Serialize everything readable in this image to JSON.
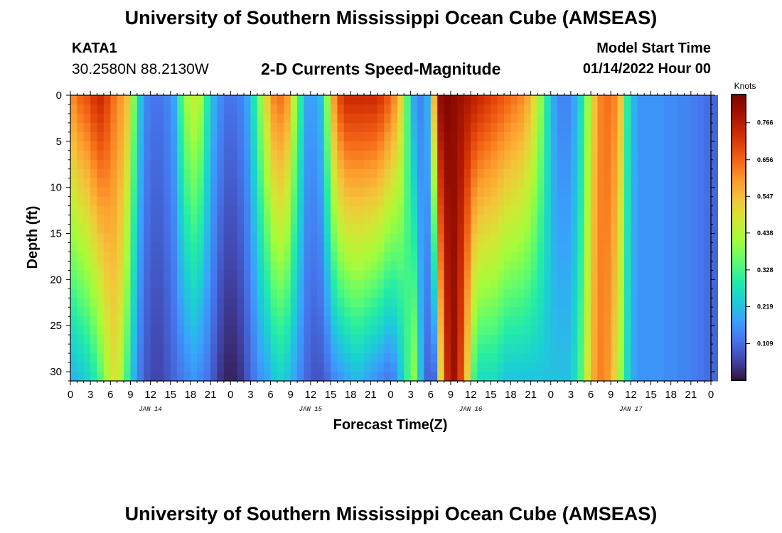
{
  "header": {
    "title": "University of Southern Mississippi Ocean Cube (AMSEAS)",
    "station_id": "KATA1",
    "station_coords": "30.2580N  88.2130W",
    "subtitle": "2-D Currents Speed-Magnitude",
    "start_label": "Model Start Time",
    "start_value": "01/14/2022 Hour 00"
  },
  "footer": {
    "title": "University of Southern Mississippi Ocean Cube (AMSEAS)"
  },
  "chart_data": {
    "type": "heatmap",
    "title": "2-D Currents Speed-Magnitude",
    "xlabel": "Forecast Time(Z)",
    "ylabel": "Depth (ft)",
    "x_range_hours": [
      0,
      96
    ],
    "y_range_ft": [
      0,
      31
    ],
    "x_tick_labels": [
      "0",
      "3",
      "6",
      "9",
      "12",
      "15",
      "18",
      "21",
      "0",
      "3",
      "6",
      "9",
      "12",
      "15",
      "18",
      "21",
      "0",
      "3",
      "6",
      "9",
      "12",
      "15",
      "18",
      "21",
      "0",
      "3",
      "6",
      "9",
      "12",
      "15",
      "18",
      "21",
      "0"
    ],
    "x_date_labels": [
      "JAN 14",
      "JAN 15",
      "JAN 16",
      "JAN 17"
    ],
    "y_ticks": [
      0,
      5,
      10,
      15,
      20,
      25,
      30
    ],
    "colorbar": {
      "unit": "Knots",
      "range": [
        0.0,
        0.85
      ],
      "tick_values": [
        0.109,
        0.219,
        0.328,
        0.438,
        0.547,
        0.656,
        0.766
      ],
      "tick_labels": [
        "0.109",
        "0.219",
        "0.328",
        "0.438",
        "0.547",
        "0.656",
        "0.766"
      ]
    },
    "surface_speed_knots_by_hour": [
      0.62,
      0.66,
      0.68,
      0.72,
      0.74,
      0.7,
      0.64,
      0.6,
      0.55,
      0.38,
      0.22,
      0.14,
      0.12,
      0.12,
      0.14,
      0.18,
      0.32,
      0.42,
      0.46,
      0.42,
      0.3,
      0.2,
      0.15,
      0.12,
      0.12,
      0.14,
      0.18,
      0.28,
      0.4,
      0.52,
      0.62,
      0.64,
      0.6,
      0.44,
      0.3,
      0.18,
      0.18,
      0.22,
      0.4,
      0.6,
      0.7,
      0.74,
      0.74,
      0.74,
      0.74,
      0.74,
      0.72,
      0.68,
      0.62,
      0.52,
      0.34,
      0.18,
      0.14,
      0.2,
      0.56,
      0.82,
      0.84,
      0.82,
      0.8,
      0.78,
      0.76,
      0.74,
      0.72,
      0.7,
      0.68,
      0.66,
      0.64,
      0.62,
      0.58,
      0.5,
      0.4,
      0.28,
      0.18,
      0.14,
      0.14,
      0.18,
      0.26,
      0.4,
      0.54,
      0.62,
      0.64,
      0.62,
      0.54,
      0.3,
      0.2,
      0.16,
      0.16,
      0.16,
      0.16,
      0.15,
      0.15,
      0.14,
      0.14,
      0.13,
      0.12,
      0.11,
      0.1
    ],
    "bottom_speed_knots_by_hour": [
      0.2,
      0.22,
      0.24,
      0.28,
      0.34,
      0.42,
      0.48,
      0.44,
      0.32,
      0.2,
      0.12,
      0.08,
      0.06,
      0.06,
      0.08,
      0.1,
      0.12,
      0.14,
      0.16,
      0.14,
      0.12,
      0.08,
      0.04,
      0.02,
      0.02,
      0.04,
      0.08,
      0.12,
      0.16,
      0.18,
      0.22,
      0.24,
      0.22,
      0.18,
      0.14,
      0.1,
      0.08,
      0.08,
      0.1,
      0.14,
      0.16,
      0.18,
      0.2,
      0.2,
      0.18,
      0.16,
      0.14,
      0.12,
      0.14,
      0.22,
      0.32,
      0.4,
      0.22,
      0.1,
      0.1,
      0.5,
      0.74,
      0.8,
      0.7,
      0.52,
      0.32,
      0.26,
      0.26,
      0.26,
      0.24,
      0.22,
      0.22,
      0.22,
      0.22,
      0.22,
      0.22,
      0.22,
      0.22,
      0.22,
      0.22,
      0.26,
      0.34,
      0.48,
      0.58,
      0.62,
      0.6,
      0.52,
      0.4,
      0.26,
      0.18,
      0.16,
      0.16,
      0.16,
      0.16,
      0.15,
      0.15,
      0.14,
      0.14,
      0.13,
      0.12,
      0.11,
      0.1
    ]
  }
}
